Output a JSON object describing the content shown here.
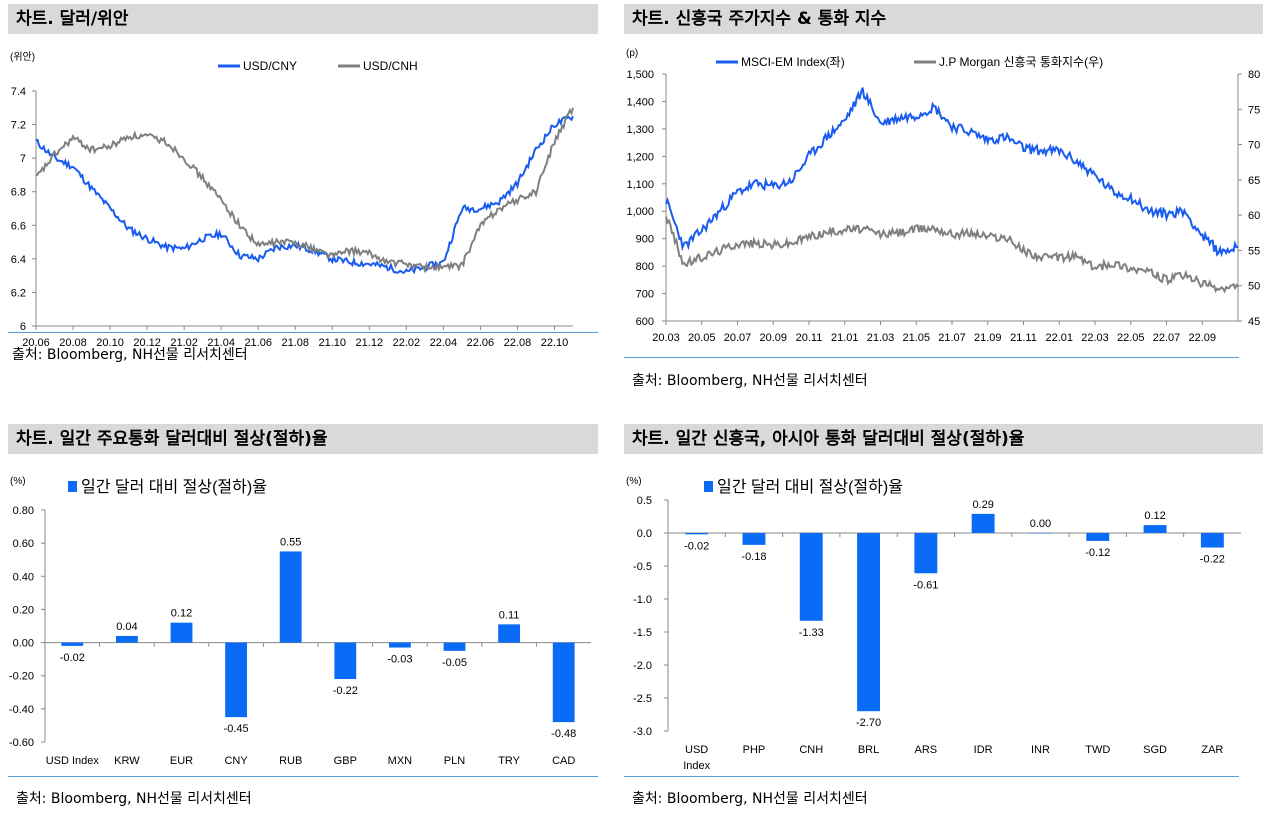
{
  "panels": {
    "p1": {
      "title": "차트. 달러/위안",
      "source": "출처: Bloomberg, NH선물 리서치센터"
    },
    "p2": {
      "title": "차트. 신흥국 주가지수 & 통화 지수",
      "source": "출처: Bloomberg, NH선물 리서치센터"
    },
    "p3": {
      "title": "차트. 일간 주요통화 달러대비 절상(절하)율",
      "source": "출처: Bloomberg, NH선물 리서치센터"
    },
    "p4": {
      "title": "차트. 일간 신흥국, 아시아 통화 달러대비 절상(절하)율",
      "source": "출처: Bloomberg, NH선물 리서치센터"
    }
  },
  "colors": {
    "blue": "#1a5cf0",
    "gray": "#808080",
    "bar": "#0a6cf6",
    "rule": "#5b9bd5"
  },
  "chart_data": [
    {
      "id": "usdcny",
      "type": "line",
      "unit_label": "(위안)",
      "ylim": [
        6.0,
        7.4
      ],
      "yticks": [
        "7.4",
        "7.2",
        "7",
        "6.8",
        "6.6",
        "6.4",
        "6.2",
        "6"
      ],
      "yticks_values": [
        7.4,
        7.2,
        7.0,
        6.8,
        6.6,
        6.4,
        6.2,
        6.0
      ],
      "xlim": [
        "2020-06",
        "2022-11"
      ],
      "xticks": [
        "20.06",
        "20.08",
        "20.10",
        "20.12",
        "21.02",
        "21.04",
        "21.06",
        "21.08",
        "21.10",
        "21.12",
        "22.02",
        "22.04",
        "22.06",
        "22.08",
        "22.10"
      ],
      "series": [
        {
          "name": "USD/CNY",
          "color": "#1a5cf0",
          "points": [
            [
              "2020-06",
              7.1
            ],
            [
              "2020-07",
              7.0
            ],
            [
              "2020-08",
              6.95
            ],
            [
              "2020-09",
              6.82
            ],
            [
              "2020-10",
              6.7
            ],
            [
              "2020-11",
              6.58
            ],
            [
              "2020-12",
              6.52
            ],
            [
              "2021-01",
              6.47
            ],
            [
              "2021-02",
              6.46
            ],
            [
              "2021-03",
              6.52
            ],
            [
              "2021-04",
              6.55
            ],
            [
              "2021-05",
              6.42
            ],
            [
              "2021-06",
              6.4
            ],
            [
              "2021-07",
              6.47
            ],
            [
              "2021-08",
              6.48
            ],
            [
              "2021-09",
              6.45
            ],
            [
              "2021-10",
              6.4
            ],
            [
              "2021-11",
              6.38
            ],
            [
              "2021-12",
              6.37
            ],
            [
              "2022-01",
              6.35
            ],
            [
              "2022-02",
              6.32
            ],
            [
              "2022-03",
              6.35
            ],
            [
              "2022-04",
              6.38
            ],
            [
              "2022-05",
              6.7
            ],
            [
              "2022-06",
              6.7
            ],
            [
              "2022-07",
              6.74
            ],
            [
              "2022-08",
              6.85
            ],
            [
              "2022-09",
              7.05
            ],
            [
              "2022-10",
              7.2
            ],
            [
              "2022-11",
              7.25
            ]
          ]
        },
        {
          "name": "USD/CNH",
          "color": "#808080",
          "points": [
            [
              "2020-06",
              6.88
            ],
            [
              "2020-07",
              7.02
            ],
            [
              "2020-08",
              7.12
            ],
            [
              "2020-09",
              7.05
            ],
            [
              "2020-10",
              7.07
            ],
            [
              "2020-11",
              7.13
            ],
            [
              "2020-12",
              7.13
            ],
            [
              "2021-01",
              7.1
            ],
            [
              "2021-02",
              7.0
            ],
            [
              "2021-03",
              6.88
            ],
            [
              "2021-04",
              6.75
            ],
            [
              "2021-05",
              6.6
            ],
            [
              "2021-06",
              6.48
            ],
            [
              "2021-07",
              6.5
            ],
            [
              "2021-08",
              6.5
            ],
            [
              "2021-09",
              6.46
            ],
            [
              "2021-10",
              6.42
            ],
            [
              "2021-11",
              6.45
            ],
            [
              "2021-12",
              6.43
            ],
            [
              "2022-01",
              6.38
            ],
            [
              "2022-02",
              6.37
            ],
            [
              "2022-03",
              6.35
            ],
            [
              "2022-04",
              6.35
            ],
            [
              "2022-05",
              6.36
            ],
            [
              "2022-06",
              6.6
            ],
            [
              "2022-07",
              6.7
            ],
            [
              "2022-08",
              6.75
            ],
            [
              "2022-09",
              6.8
            ],
            [
              "2022-10",
              7.1
            ],
            [
              "2022-11",
              7.3
            ]
          ]
        }
      ]
    },
    {
      "id": "em",
      "type": "line",
      "unit_label": "(p)",
      "ylim_left": [
        600,
        1500
      ],
      "yticks_left": [
        "1,500",
        "1,400",
        "1,300",
        "1,200",
        "1,100",
        "1,000",
        "900",
        "800",
        "700",
        "600"
      ],
      "yticks_left_values": [
        1500,
        1400,
        1300,
        1200,
        1100,
        1000,
        900,
        800,
        700,
        600
      ],
      "ylim_right": [
        45,
        80
      ],
      "yticks_right": [
        "80",
        "75",
        "70",
        "65",
        "60",
        "55",
        "50",
        "45"
      ],
      "yticks_right_values": [
        80,
        75,
        70,
        65,
        60,
        55,
        50,
        45
      ],
      "xlim": [
        "2020-03",
        "2022-11"
      ],
      "xticks": [
        "20.03",
        "20.05",
        "20.07",
        "20.09",
        "20.11",
        "21.01",
        "21.03",
        "21.05",
        "21.07",
        "21.09",
        "21.11",
        "22.01",
        "22.03",
        "22.05",
        "22.07",
        "22.09"
      ],
      "series": [
        {
          "name": "MSCI-EM Index(좌)",
          "color": "#1a5cf0",
          "axis": "left",
          "points": [
            [
              "2020-03",
              1040
            ],
            [
              "2020-04",
              870
            ],
            [
              "2020-05",
              930
            ],
            [
              "2020-06",
              1000
            ],
            [
              "2020-07",
              1070
            ],
            [
              "2020-08",
              1100
            ],
            [
              "2020-09",
              1090
            ],
            [
              "2020-10",
              1110
            ],
            [
              "2020-11",
              1200
            ],
            [
              "2020-12",
              1270
            ],
            [
              "2021-01",
              1330
            ],
            [
              "2021-02",
              1440
            ],
            [
              "2021-03",
              1320
            ],
            [
              "2021-04",
              1340
            ],
            [
              "2021-05",
              1350
            ],
            [
              "2021-06",
              1380
            ],
            [
              "2021-07",
              1310
            ],
            [
              "2021-08",
              1290
            ],
            [
              "2021-09",
              1260
            ],
            [
              "2021-10",
              1270
            ],
            [
              "2021-11",
              1230
            ],
            [
              "2021-12",
              1220
            ],
            [
              "2022-01",
              1220
            ],
            [
              "2022-02",
              1180
            ],
            [
              "2022-03",
              1130
            ],
            [
              "2022-04",
              1070
            ],
            [
              "2022-05",
              1050
            ],
            [
              "2022-06",
              1000
            ],
            [
              "2022-07",
              990
            ],
            [
              "2022-08",
              1000
            ],
            [
              "2022-09",
              910
            ],
            [
              "2022-10",
              850
            ],
            [
              "2022-11",
              870
            ]
          ]
        },
        {
          "name": "J.P Morgan 신흥국 통화지수(우)",
          "color": "#808080",
          "axis": "right",
          "points": [
            [
              "2020-03",
              60
            ],
            [
              "2020-04",
              53
            ],
            [
              "2020-05",
              54
            ],
            [
              "2020-06",
              55
            ],
            [
              "2020-07",
              56
            ],
            [
              "2020-08",
              56
            ],
            [
              "2020-09",
              55.8
            ],
            [
              "2020-10",
              56
            ],
            [
              "2020-11",
              57
            ],
            [
              "2020-12",
              57.5
            ],
            [
              "2021-01",
              58
            ],
            [
              "2021-02",
              58
            ],
            [
              "2021-03",
              57.3
            ],
            [
              "2021-04",
              57.5
            ],
            [
              "2021-05",
              58
            ],
            [
              "2021-06",
              58.2
            ],
            [
              "2021-07",
              57.3
            ],
            [
              "2021-08",
              57.5
            ],
            [
              "2021-09",
              57
            ],
            [
              "2021-10",
              56.8
            ],
            [
              "2021-11",
              55
            ],
            [
              "2021-12",
              54
            ],
            [
              "2022-01",
              54
            ],
            [
              "2022-02",
              54.2
            ],
            [
              "2022-03",
              52.5
            ],
            [
              "2022-04",
              53.2
            ],
            [
              "2022-05",
              52.5
            ],
            [
              "2022-06",
              52
            ],
            [
              "2022-07",
              50.8
            ],
            [
              "2022-08",
              51.5
            ],
            [
              "2022-09",
              50.3
            ],
            [
              "2022-10",
              49.5
            ],
            [
              "2022-11",
              49.8
            ]
          ]
        }
      ]
    },
    {
      "id": "major",
      "type": "bar",
      "unit_label": "(%)",
      "legend": "일간 달러 대비 절상(절하)율",
      "ylim": [
        -0.6,
        0.8
      ],
      "yticks": [
        "0.80",
        "0.60",
        "0.40",
        "0.20",
        "0.00",
        "-0.20",
        "-0.40",
        "-0.60"
      ],
      "yticks_values": [
        0.8,
        0.6,
        0.4,
        0.2,
        0.0,
        -0.2,
        -0.4,
        -0.6
      ],
      "categories": [
        "USD Index",
        "KRW",
        "EUR",
        "CNY",
        "RUB",
        "GBP",
        "MXN",
        "PLN",
        "TRY",
        "CAD"
      ],
      "values": [
        -0.02,
        0.04,
        0.12,
        -0.45,
        0.55,
        -0.22,
        -0.03,
        -0.05,
        0.11,
        -0.48
      ],
      "value_labels": [
        "-0.02",
        "0.04",
        "0.12",
        "-0.45",
        "0.55",
        "-0.22",
        "-0.03",
        "-0.05",
        "0.11",
        "-0.48"
      ]
    },
    {
      "id": "em_asia",
      "type": "bar",
      "unit_label": "(%)",
      "legend": "일간 달러 대비 절상(절하)율",
      "ylim": [
        -3.0,
        0.5
      ],
      "yticks": [
        "0.5",
        "0.0",
        "-0.5",
        "-1.0",
        "-1.5",
        "-2.0",
        "-2.5",
        "-3.0"
      ],
      "yticks_values": [
        0.5,
        0.0,
        -0.5,
        -1.0,
        -1.5,
        -2.0,
        -2.5,
        -3.0
      ],
      "categories": [
        "USD Index",
        "PHP",
        "CNH",
        "BRL",
        "ARS",
        "IDR",
        "INR",
        "TWD",
        "SGD",
        "ZAR"
      ],
      "values": [
        -0.02,
        -0.18,
        -1.33,
        -2.7,
        -0.61,
        0.29,
        0.0,
        -0.12,
        0.12,
        -0.22
      ],
      "value_labels": [
        "-0.02",
        "-0.18",
        "-1.33",
        "-2.70",
        "-0.61",
        "0.29",
        "0.00",
        "-0.12",
        "0.12",
        "-0.22"
      ]
    }
  ]
}
